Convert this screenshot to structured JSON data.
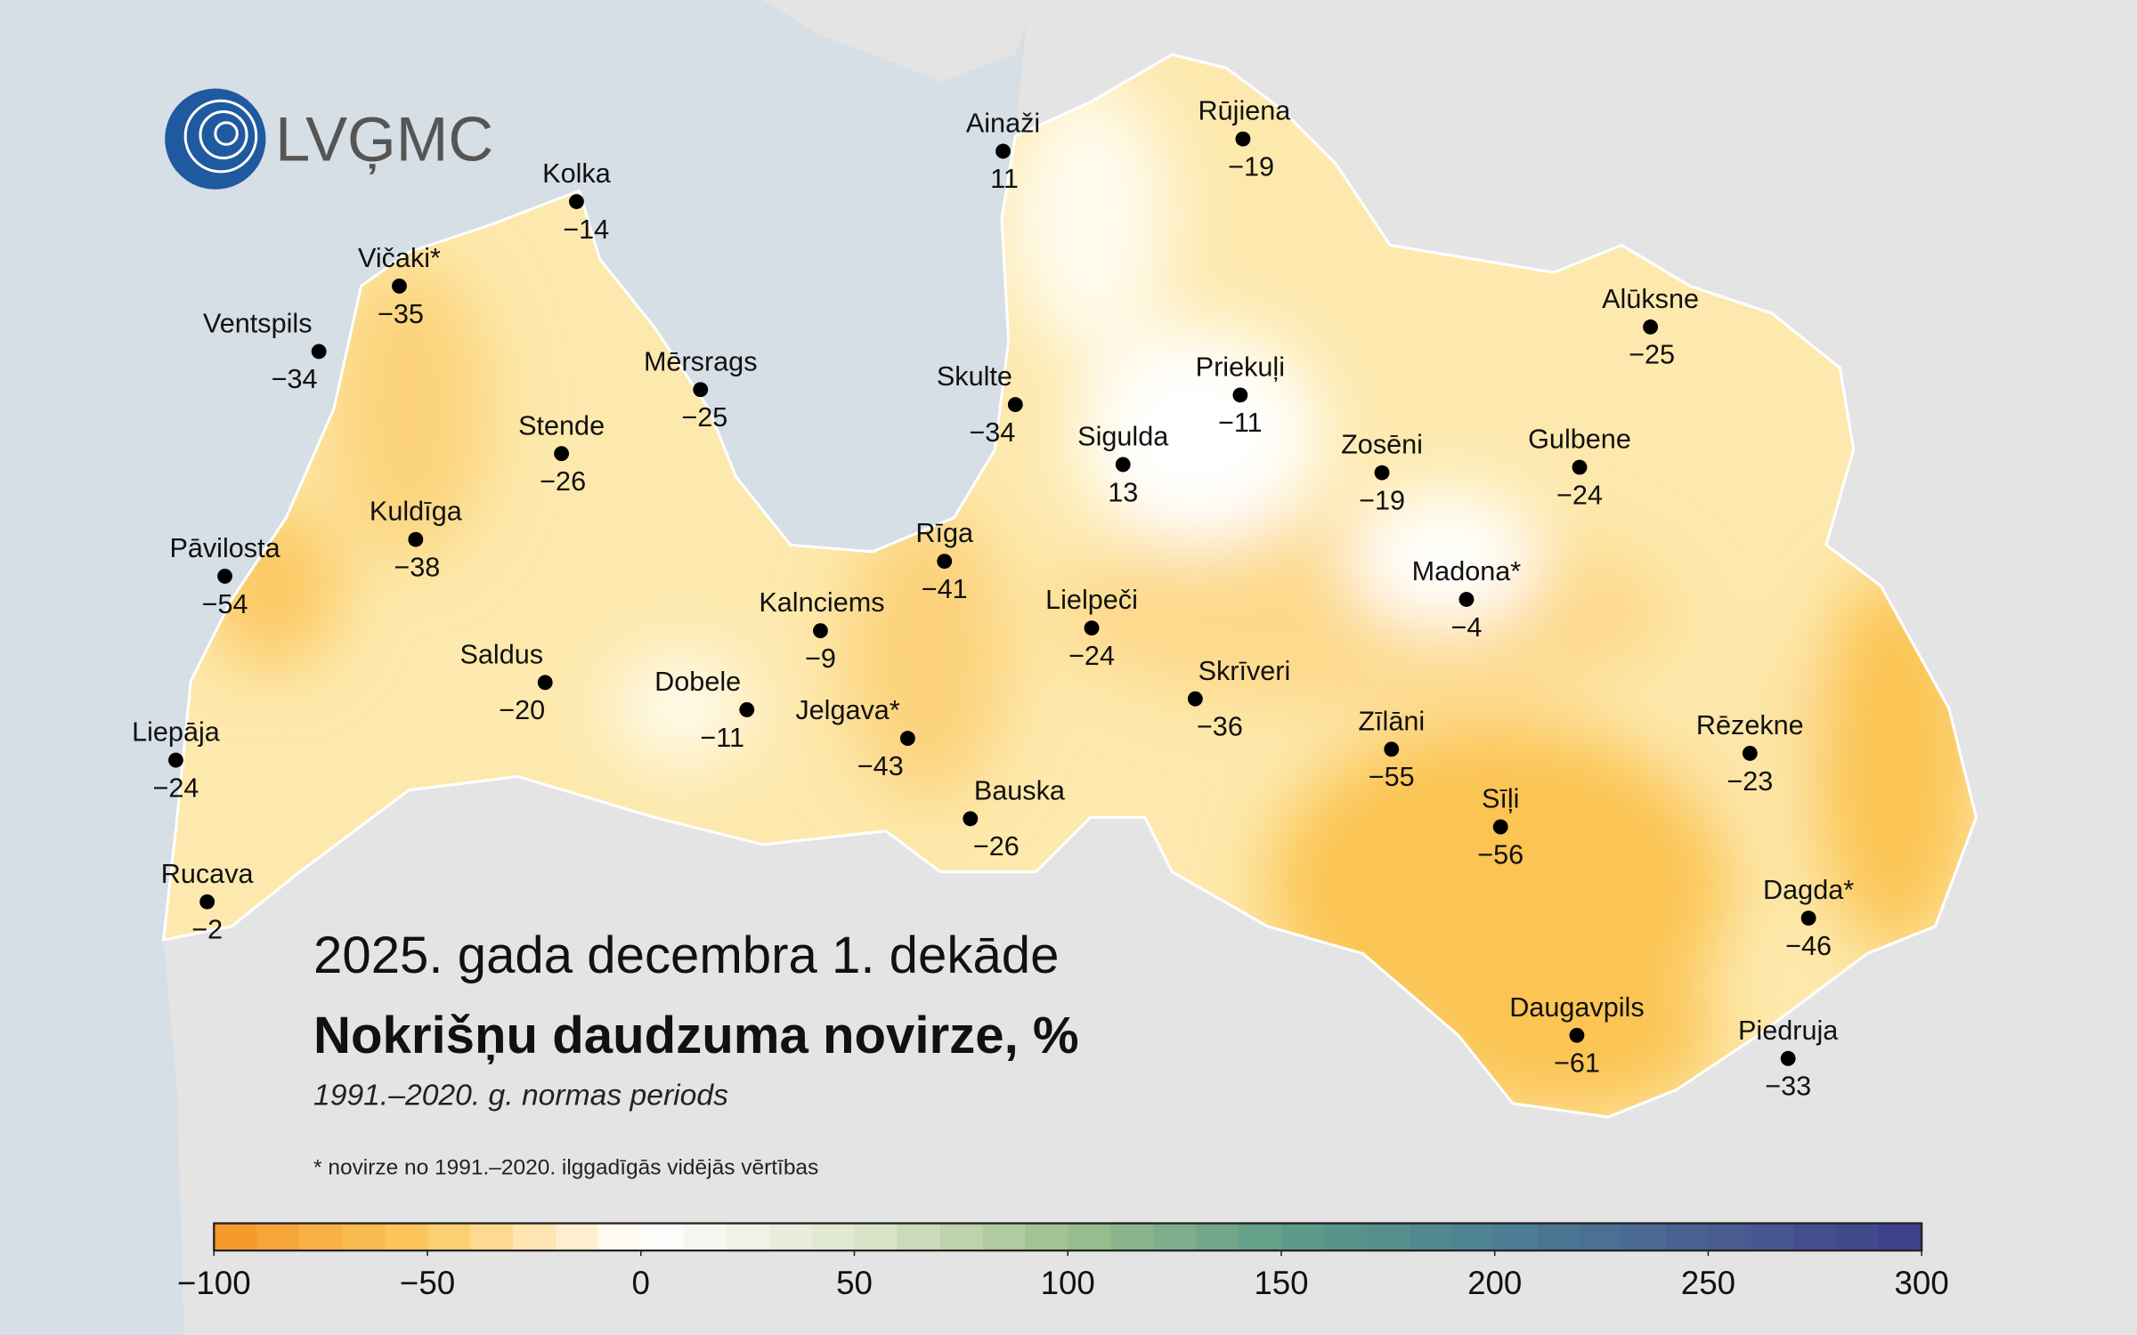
{
  "logo": "LVĢMC",
  "title": "2025. gada decembra 1. dekāde",
  "subtitle": "Nokrišņu daudzuma novirze, %",
  "period": "1991.–2020. g. normas periods",
  "note": "* novirze no 1991.–2020. ilggadīgās vidējās vērtības",
  "stations": [
    {
      "name": "Ainaži",
      "value": 11
    },
    {
      "name": "Rūjiena",
      "value": -19,
      "label": "−19"
    },
    {
      "name": "Kolka",
      "value": -14,
      "label": "−14"
    },
    {
      "name": "Vičaki*",
      "value": -35,
      "label": "−35"
    },
    {
      "name": "Ventspils",
      "value": -34,
      "label": "−34"
    },
    {
      "name": "Mērsrags",
      "value": -25,
      "label": "−25"
    },
    {
      "name": "Skulte",
      "value": -34,
      "label": "−34"
    },
    {
      "name": "Priekuļi",
      "value": -11,
      "label": "−11"
    },
    {
      "name": "Alūksne",
      "value": -25,
      "label": "−25"
    },
    {
      "name": "Stende",
      "value": -26,
      "label": "−26"
    },
    {
      "name": "Sigulda",
      "value": 13
    },
    {
      "name": "Zosēni",
      "value": -19,
      "label": "−19"
    },
    {
      "name": "Gulbene",
      "value": -24,
      "label": "−24"
    },
    {
      "name": "Kuldīga",
      "value": -38,
      "label": "−38"
    },
    {
      "name": "Pāvilosta",
      "value": -54,
      "label": "−54"
    },
    {
      "name": "Rīga",
      "value": -41,
      "label": "−41"
    },
    {
      "name": "Madona*",
      "value": -4,
      "label": "−4"
    },
    {
      "name": "Kalnciems",
      "value": -9,
      "label": "−9"
    },
    {
      "name": "Lielpeči",
      "value": -24,
      "label": "−24"
    },
    {
      "name": "Saldus",
      "value": -20,
      "label": "−20"
    },
    {
      "name": "Skrīveri",
      "value": -36,
      "label": "−36"
    },
    {
      "name": "Dobele",
      "value": -11,
      "label": "−11"
    },
    {
      "name": "Jelgava*",
      "value": -43,
      "label": "−43"
    },
    {
      "name": "Zīlāni",
      "value": -55,
      "label": "−55"
    },
    {
      "name": "Rēzekne",
      "value": -23,
      "label": "−23"
    },
    {
      "name": "Liepāja",
      "value": -24,
      "label": "−24"
    },
    {
      "name": "Bauska",
      "value": -26,
      "label": "−26"
    },
    {
      "name": "Sīļi",
      "value": -56,
      "label": "−56"
    },
    {
      "name": "Rucava",
      "value": -2,
      "label": "−2"
    },
    {
      "name": "Dagda*",
      "value": -46,
      "label": "−46"
    },
    {
      "name": "Daugavpils",
      "value": -61,
      "label": "−61"
    },
    {
      "name": "Piedruja",
      "value": -33,
      "label": "−33"
    }
  ],
  "colorbar": {
    "lim": [
      -100,
      300
    ],
    "ticks": [
      {
        "value": -100,
        "label": "−100"
      },
      {
        "value": -50,
        "label": "−50"
      },
      0,
      50,
      100,
      150,
      200,
      250,
      300
    ],
    "colors": [
      "#f39527",
      "#fcca62",
      "#ffffff",
      "#dfe7cd",
      "#9dbf8d",
      "#5f9d88",
      "#4b8094",
      "#4a5f92",
      "#3b3f88"
    ],
    "step": 10
  }
}
